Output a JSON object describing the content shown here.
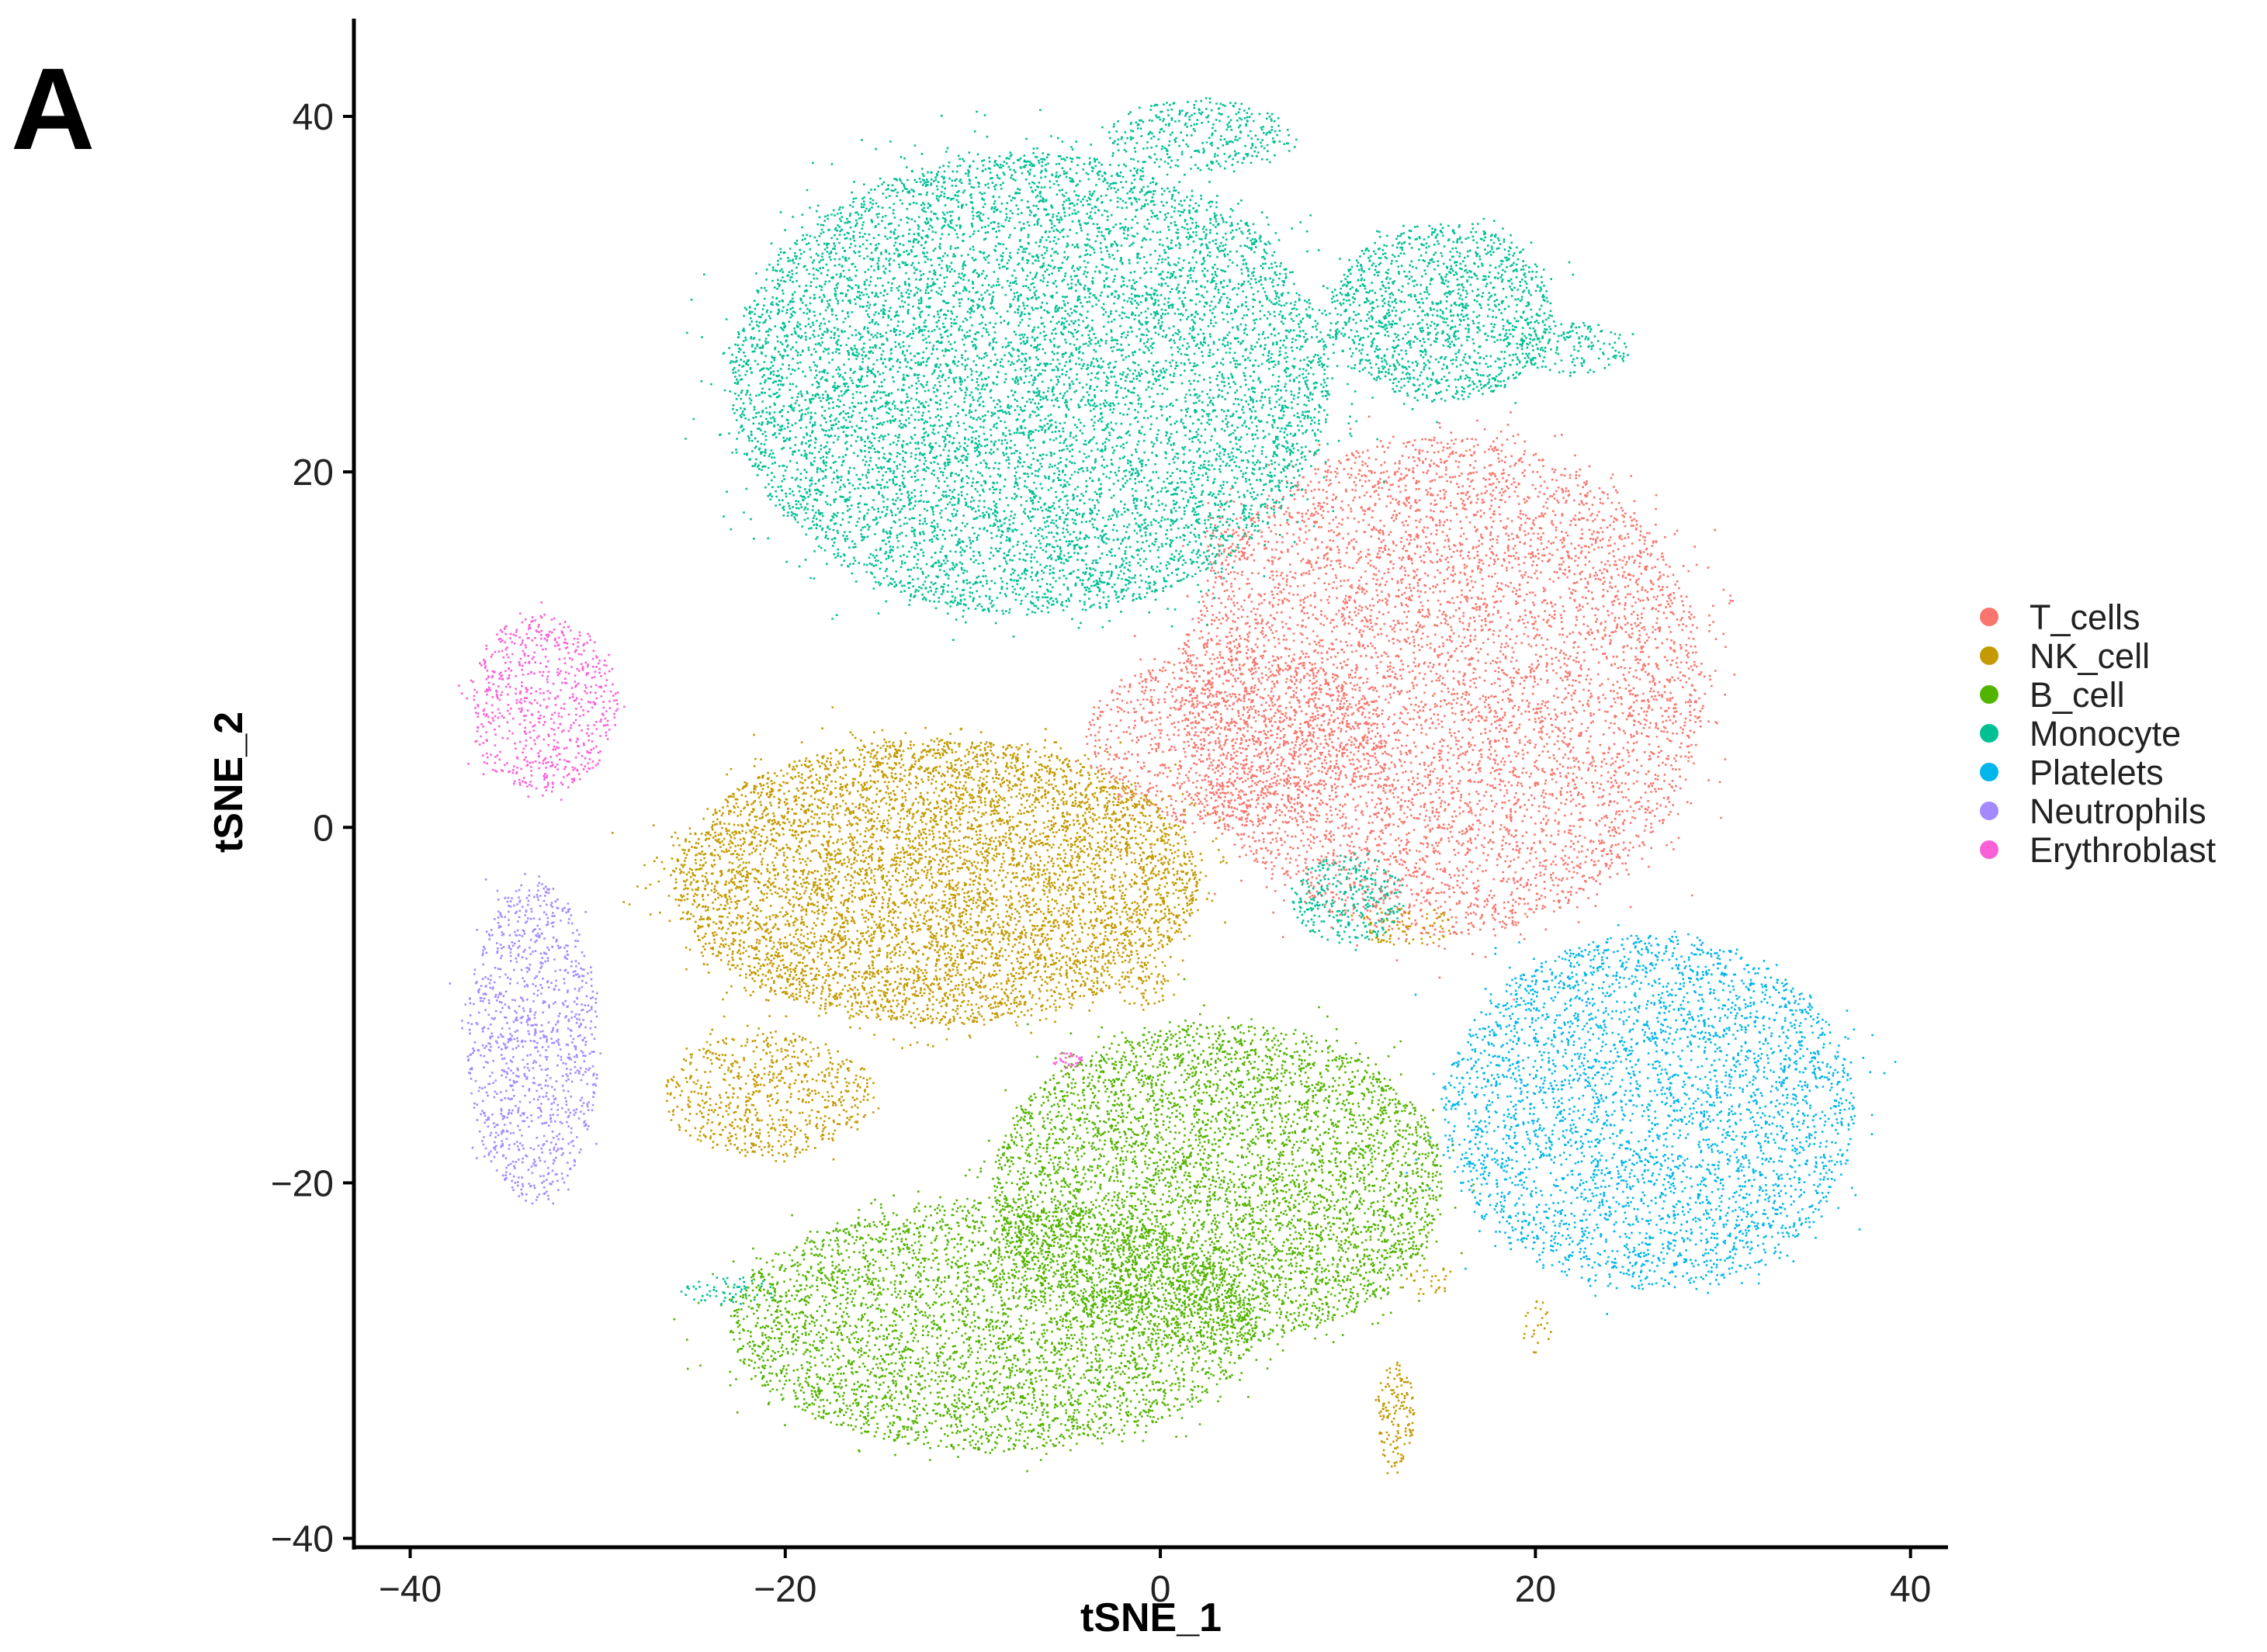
{
  "panel_label": "A",
  "chart_data": {
    "type": "scatter",
    "title": "",
    "xlabel": "tSNE_1",
    "ylabel": "tSNE_2",
    "xlim": [
      -43,
      42
    ],
    "ylim": [
      -40.5,
      45.5
    ],
    "xticks": [
      -40,
      -20,
      0,
      20,
      40
    ],
    "yticks": [
      -40,
      -20,
      0,
      20,
      40
    ],
    "xtick_labels": [
      "−40",
      "−20",
      "0",
      "20",
      "40"
    ],
    "ytick_labels": [
      "−40",
      "−20",
      "0",
      "20",
      "40"
    ],
    "grid": false,
    "legend_position": "right",
    "point_size": "small",
    "series": [
      {
        "name": "T_cells",
        "color": "#F8766D",
        "clusters": [
          {
            "cx": 15,
            "cy": 8,
            "rx": 14,
            "ry": 14,
            "n": 6500
          },
          {
            "cx": 4,
            "cy": 5,
            "rx": 8,
            "ry": 5,
            "n": 1200
          },
          {
            "cx": 3.5,
            "cy": 16,
            "rx": 1.2,
            "ry": 2.5,
            "n": 60
          }
        ]
      },
      {
        "name": "NK_cell",
        "color": "#C49A00",
        "clusters": [
          {
            "cx": -12,
            "cy": -3,
            "rx": 14,
            "ry": 8,
            "n": 6500
          },
          {
            "cx": -21,
            "cy": -15,
            "rx": 5.5,
            "ry": 3.5,
            "n": 700
          },
          {
            "cx": 12.5,
            "cy": -33,
            "rx": 1,
            "ry": 3,
            "n": 150
          },
          {
            "cx": 13,
            "cy": -5.5,
            "rx": 2.5,
            "ry": 1.2,
            "n": 80
          },
          {
            "cx": -1,
            "cy": -9,
            "rx": 1.5,
            "ry": 1,
            "n": 50
          },
          {
            "cx": 14.5,
            "cy": -25.5,
            "rx": 1.5,
            "ry": 0.8,
            "n": 30
          },
          {
            "cx": 20,
            "cy": -28,
            "rx": 0.8,
            "ry": 1.5,
            "n": 25
          }
        ]
      },
      {
        "name": "B_cell",
        "color": "#53B400",
        "clusters": [
          {
            "cx": 3,
            "cy": -20,
            "rx": 12,
            "ry": 9,
            "n": 5200
          },
          {
            "cx": -9,
            "cy": -28,
            "rx": 14,
            "ry": 7,
            "n": 4300
          }
        ]
      },
      {
        "name": "Monocyte",
        "color": "#00C094",
        "clusters": [
          {
            "cx": -7,
            "cy": 25,
            "rx": 16,
            "ry": 13,
            "n": 9000
          },
          {
            "cx": 2,
            "cy": 39,
            "rx": 5,
            "ry": 2,
            "n": 350
          },
          {
            "cx": 15,
            "cy": 29,
            "rx": 6,
            "ry": 5,
            "n": 1400
          },
          {
            "cx": 22,
            "cy": 27,
            "rx": 3,
            "ry": 1.5,
            "n": 150
          },
          {
            "cx": 10,
            "cy": -4,
            "rx": 3,
            "ry": 2.5,
            "n": 300
          },
          {
            "cx": -23,
            "cy": -26,
            "rx": 2.5,
            "ry": 0.8,
            "n": 60
          }
        ]
      },
      {
        "name": "Platelets",
        "color": "#00B6EB",
        "clusters": [
          {
            "cx": 26,
            "cy": -16,
            "rx": 11,
            "ry": 10,
            "n": 3800
          }
        ]
      },
      {
        "name": "Neutrophils",
        "color": "#A58AFF",
        "clusters": [
          {
            "cx": -33.5,
            "cy": -12,
            "rx": 3.5,
            "ry": 9,
            "n": 1100
          }
        ]
      },
      {
        "name": "Erythroblast",
        "color": "#FB61D7",
        "clusters": [
          {
            "cx": -33,
            "cy": 7,
            "rx": 4,
            "ry": 5,
            "n": 700
          },
          {
            "cx": -5,
            "cy": -13,
            "rx": 0.8,
            "ry": 0.5,
            "n": 30
          }
        ]
      }
    ]
  }
}
